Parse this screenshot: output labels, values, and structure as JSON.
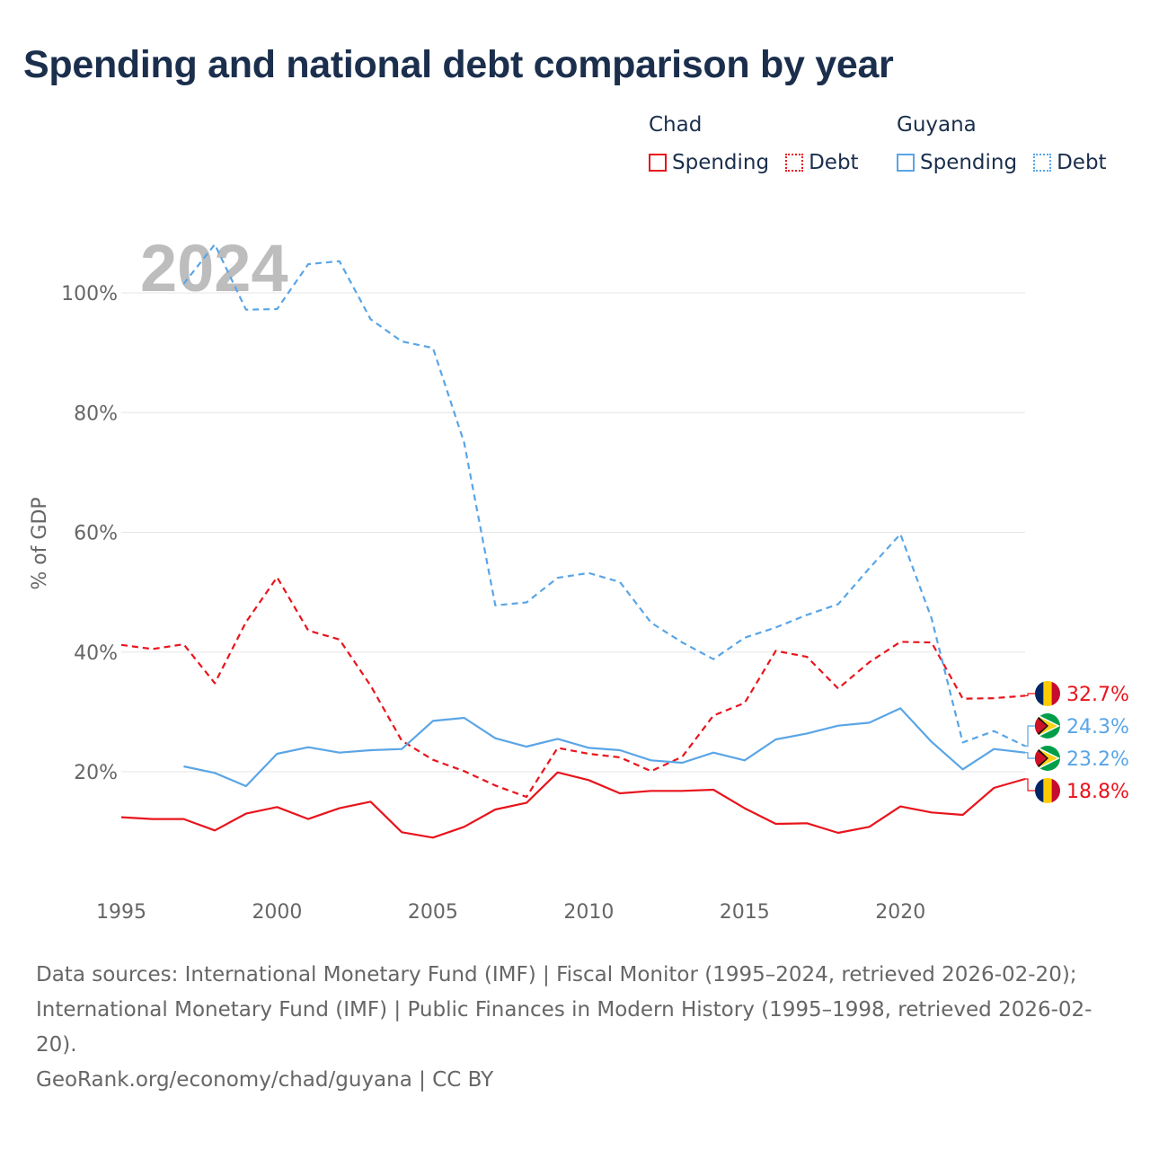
{
  "title": "Spending and national debt comparison by year",
  "legend": {
    "chad": {
      "name": "Chad",
      "spending": "Spending",
      "debt": "Debt"
    },
    "guyana": {
      "name": "Guyana",
      "spending": "Spending",
      "debt": "Debt"
    }
  },
  "watermark_year": "2024",
  "colors": {
    "chad": "#e8141c",
    "guyana": "#5aa5e6",
    "title": "#1b2f4d",
    "grid": "#e6e6e6",
    "axis_text": "#666666"
  },
  "chart_data": {
    "type": "line",
    "title": "Spending and national debt comparison by year",
    "xlabel": "",
    "ylabel": "% of GDP",
    "xlim": [
      1995,
      2024
    ],
    "ylim": [
      0,
      110
    ],
    "x_ticks": [
      1995,
      2000,
      2005,
      2010,
      2015,
      2020
    ],
    "y_ticks": [
      20,
      40,
      60,
      80,
      100
    ],
    "y_tick_labels": [
      "20%",
      "40%",
      "60%",
      "80%",
      "100%"
    ],
    "grid": true,
    "series": [
      {
        "name": "Chad Spending",
        "country": "chad",
        "style": "solid",
        "x": [
          1995,
          1996,
          1997,
          1998,
          1999,
          2000,
          2001,
          2002,
          2003,
          2004,
          2005,
          2006,
          2007,
          2008,
          2009,
          2010,
          2011,
          2012,
          2013,
          2014,
          2015,
          2016,
          2017,
          2018,
          2019,
          2020,
          2021,
          2022,
          2023,
          2024
        ],
        "values": [
          12.4,
          12.1,
          12.1,
          10.2,
          13.0,
          14.1,
          12.1,
          13.9,
          15.0,
          9.9,
          9.0,
          10.8,
          13.7,
          14.8,
          19.9,
          18.6,
          16.4,
          16.8,
          16.8,
          17.0,
          13.9,
          11.3,
          11.4,
          9.8,
          10.8,
          14.2,
          13.2,
          12.8,
          17.3,
          18.8
        ],
        "end_label": "18.8%"
      },
      {
        "name": "Chad Debt",
        "country": "chad",
        "style": "dashed",
        "x": [
          1995,
          1996,
          1997,
          1998,
          1999,
          2000,
          2001,
          2002,
          2003,
          2004,
          2005,
          2006,
          2007,
          2008,
          2009,
          2010,
          2011,
          2012,
          2013,
          2014,
          2015,
          2016,
          2017,
          2018,
          2019,
          2020,
          2021,
          2022,
          2023,
          2024
        ],
        "values": [
          41.2,
          40.5,
          41.3,
          34.8,
          45.0,
          52.5,
          43.6,
          42.1,
          34.4,
          25.2,
          22.0,
          20.1,
          17.7,
          15.8,
          24.0,
          23.0,
          22.4,
          20.1,
          22.5,
          29.4,
          31.5,
          40.2,
          39.2,
          33.9,
          38.3,
          41.7,
          41.6,
          32.2,
          32.3,
          32.7
        ],
        "end_label": "32.7%"
      },
      {
        "name": "Guyana Spending",
        "country": "guyana",
        "style": "solid",
        "x": [
          1997,
          1998,
          1999,
          2000,
          2001,
          2002,
          2003,
          2004,
          2005,
          2006,
          2007,
          2008,
          2009,
          2010,
          2011,
          2012,
          2013,
          2014,
          2015,
          2016,
          2017,
          2018,
          2019,
          2020,
          2021,
          2022,
          2023,
          2024
        ],
        "values": [
          20.9,
          19.8,
          17.6,
          23.0,
          24.1,
          23.2,
          23.6,
          23.8,
          28.5,
          29.0,
          25.6,
          24.2,
          25.5,
          24.0,
          23.6,
          21.9,
          21.5,
          23.2,
          21.9,
          25.4,
          26.4,
          27.7,
          28.2,
          30.6,
          25.0,
          20.4,
          23.8,
          23.2
        ],
        "end_label": "23.2%"
      },
      {
        "name": "Guyana Debt",
        "country": "guyana",
        "style": "dashed",
        "x": [
          1997,
          1998,
          1999,
          2000,
          2001,
          2002,
          2003,
          2004,
          2005,
          2006,
          2007,
          2008,
          2009,
          2010,
          2011,
          2012,
          2013,
          2014,
          2015,
          2016,
          2017,
          2018,
          2019,
          2020,
          2021,
          2022,
          2023,
          2024
        ],
        "values": [
          101.5,
          108.1,
          97.2,
          97.3,
          104.8,
          105.3,
          95.6,
          91.9,
          90.8,
          75.0,
          47.8,
          48.3,
          52.4,
          53.2,
          51.7,
          44.9,
          41.6,
          38.8,
          42.4,
          44.1,
          46.2,
          48.0,
          54.0,
          59.7,
          45.6,
          24.9,
          26.8,
          24.3
        ],
        "end_label": "24.3%"
      }
    ]
  },
  "footer": {
    "sources": "Data sources: International Monetary Fund (IMF) | Fiscal Monitor (1995–2024, retrieved 2026-02-20); International Monetary Fund (IMF) | Public Finances in Modern History (1995–1998, retrieved 2026-02-20).",
    "credit": "GeoRank.org/economy/chad/guyana | CC BY"
  }
}
